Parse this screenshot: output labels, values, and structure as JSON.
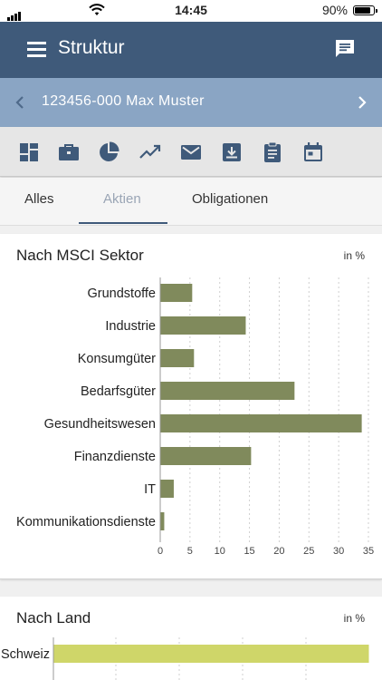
{
  "status": {
    "time": "14:45",
    "battery": "90%",
    "battery_level": 0.9
  },
  "appbar": {
    "title": "Struktur",
    "menu_icon": "menu-icon",
    "chat_icon": "chat-icon"
  },
  "account": {
    "label": "123456-000 Max Muster"
  },
  "toolbar": {
    "icons": [
      "dashboard-icon",
      "briefcase-icon",
      "pie-chart-icon",
      "trending-up-icon",
      "mail-icon",
      "download-icon",
      "clipboard-icon",
      "calendar-icon"
    ]
  },
  "tabs": [
    {
      "label": "Alles"
    },
    {
      "label": "Aktien"
    },
    {
      "label": "Obligationen"
    }
  ],
  "active_tab": 1,
  "colors": {
    "primary": "#3f5a7a",
    "secondary": "#8aa5c4",
    "sector_bar": "#808a5c",
    "country_bar": "#cfd669"
  },
  "sector_card": {
    "title": "Nach MSCI Sektor",
    "unit": "in %"
  },
  "country_card": {
    "title": "Nach Land",
    "unit": "in %"
  },
  "chart_data": [
    {
      "type": "bar",
      "orientation": "horizontal",
      "title": "Nach MSCI Sektor",
      "unit": "in %",
      "categories": [
        "Grundstoffe",
        "Industrie",
        "Konsumgüter",
        "Bedarfsgüter",
        "Gesundheitswesen",
        "Finanzdienste",
        "IT",
        "Kommunikationsdienste"
      ],
      "values": [
        5.3,
        14.3,
        5.6,
        22.5,
        33.8,
        15.2,
        2.2,
        0.6
      ],
      "xlim": [
        0,
        35
      ],
      "ticks": [
        0,
        5,
        10,
        15,
        20,
        25,
        30,
        35
      ],
      "grid": true
    },
    {
      "type": "bar",
      "orientation": "horizontal",
      "title": "Nach Land",
      "unit": "in %",
      "categories": [
        "Schweiz"
      ],
      "values": [
        100
      ],
      "grid": true
    }
  ]
}
